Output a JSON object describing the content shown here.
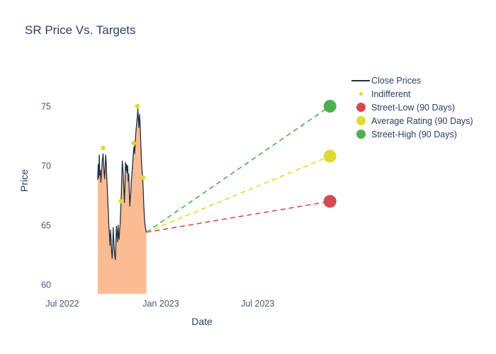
{
  "chart_data": {
    "type": "line",
    "title": "SR Price Vs. Targets",
    "xlabel": "Date",
    "ylabel": "Price",
    "x_unit": "days since 2022-07-01",
    "grid": false,
    "legend_position": "right",
    "background": "#ffffff",
    "text_color": "#2a3f5f",
    "ylim": [
      58.9,
      78.3
    ],
    "xlim_days": [
      -11,
      532
    ],
    "y_ticks": [
      {
        "label": "60",
        "value": 60
      },
      {
        "label": "65",
        "value": 65
      },
      {
        "label": "70",
        "value": 70
      },
      {
        "label": "75",
        "value": 75
      }
    ],
    "x_ticks": [
      {
        "label": "Jul 2022",
        "day": 0
      },
      {
        "label": "Jan 2023",
        "day": 184
      },
      {
        "label": "Jul 2023",
        "day": 365
      }
    ],
    "series": [
      {
        "name": "Close Prices",
        "type": "line",
        "color": "#223142",
        "fill": "#fbbc93",
        "points": [
          [
            66,
            68.8
          ],
          [
            67,
            70.1
          ],
          [
            68,
            69.0
          ],
          [
            69,
            70.9
          ],
          [
            70,
            69.2
          ],
          [
            71,
            69.6
          ],
          [
            72,
            68.6
          ],
          [
            73,
            69.3
          ],
          [
            74,
            70.0
          ],
          [
            75,
            70.6
          ],
          [
            76,
            71.0
          ],
          [
            77,
            70.2
          ],
          [
            78,
            69.4
          ],
          [
            79,
            68.9
          ],
          [
            80,
            69.8
          ],
          [
            81,
            70.9
          ],
          [
            82,
            70.3
          ],
          [
            83,
            69.0
          ],
          [
            84,
            68.0
          ],
          [
            85,
            66.9
          ],
          [
            86,
            66.0
          ],
          [
            87,
            64.8
          ],
          [
            88,
            64.2
          ],
          [
            89,
            63.3
          ],
          [
            90,
            64.6
          ],
          [
            91,
            63.8
          ],
          [
            92,
            62.8
          ],
          [
            93,
            62.2
          ],
          [
            94,
            63.0
          ],
          [
            95,
            64.8
          ],
          [
            96,
            63.9
          ],
          [
            97,
            63.0
          ],
          [
            98,
            62.4
          ],
          [
            99,
            62.1
          ],
          [
            100,
            63.2
          ],
          [
            101,
            64.9
          ],
          [
            102,
            64.3
          ],
          [
            103,
            63.6
          ],
          [
            104,
            65.0
          ],
          [
            105,
            64.2
          ],
          [
            106,
            63.8
          ],
          [
            107,
            64.6
          ],
          [
            108,
            65.1
          ],
          [
            109,
            66.2
          ],
          [
            110,
            67.4
          ],
          [
            111,
            68.9
          ],
          [
            112,
            70.4
          ],
          [
            113,
            69.8
          ],
          [
            114,
            69.1
          ],
          [
            115,
            67.8
          ],
          [
            116,
            66.9
          ],
          [
            117,
            68.4
          ],
          [
            118,
            70.3
          ],
          [
            119,
            69.6
          ],
          [
            120,
            70.1
          ],
          [
            121,
            69.4
          ],
          [
            122,
            70.0
          ],
          [
            123,
            68.7
          ],
          [
            124,
            69.3
          ],
          [
            125,
            67.9
          ],
          [
            126,
            66.6
          ],
          [
            127,
            67.2
          ],
          [
            128,
            67.9
          ],
          [
            129,
            68.8
          ],
          [
            130,
            69.3
          ],
          [
            131,
            70.0
          ],
          [
            132,
            70.6
          ],
          [
            133,
            71.3
          ],
          [
            134,
            71.6
          ],
          [
            135,
            71.0
          ],
          [
            136,
            71.8
          ],
          [
            137,
            72.6
          ],
          [
            138,
            73.1
          ],
          [
            139,
            73.6
          ],
          [
            140,
            74.1
          ],
          [
            141,
            74.8
          ],
          [
            142,
            73.9
          ],
          [
            143,
            73.2
          ],
          [
            144,
            74.3
          ],
          [
            145,
            73.8
          ],
          [
            146,
            72.6
          ],
          [
            147,
            71.4
          ],
          [
            148,
            70.2
          ],
          [
            149,
            69.5
          ],
          [
            150,
            69.0
          ],
          [
            151,
            68.0
          ],
          [
            152,
            66.8
          ],
          [
            153,
            65.9
          ],
          [
            154,
            65.2
          ],
          [
            155,
            64.8
          ],
          [
            156,
            64.6
          ],
          [
            157,
            64.4
          ]
        ]
      },
      {
        "name": "Indifferent",
        "type": "scatter",
        "color": "#e0da30",
        "points": [
          [
            76,
            71.5
          ],
          [
            109,
            67.0
          ],
          [
            133,
            71.9
          ],
          [
            140,
            75.0
          ],
          [
            151,
            69.0
          ]
        ]
      }
    ],
    "projection_start": {
      "day": 157,
      "value": 64.4
    },
    "targets": [
      {
        "name": "Street-Low (90 Days)",
        "color": "#d24b4e",
        "day": 500,
        "value": 67.0
      },
      {
        "name": "Average Rating (90 Days)",
        "color": "#e0da30",
        "day": 500,
        "value": 70.8
      },
      {
        "name": "Street-High (90 Days)",
        "color": "#4daf53",
        "day": 500,
        "value": 75.0
      }
    ]
  },
  "legend": {
    "items": [
      {
        "label": "Close Prices",
        "type": "line",
        "color": "#223142",
        "size": 0
      },
      {
        "label": "Indifferent",
        "type": "dot",
        "color": "#e0da30",
        "size": 5
      },
      {
        "label": "Street-Low (90 Days)",
        "type": "dot",
        "color": "#d24b4e",
        "size": 13
      },
      {
        "label": "Average Rating (90 Days)",
        "type": "dot",
        "color": "#e0da30",
        "size": 13
      },
      {
        "label": "Street-High (90 Days)",
        "type": "dot",
        "color": "#4daf53",
        "size": 13
      }
    ]
  }
}
